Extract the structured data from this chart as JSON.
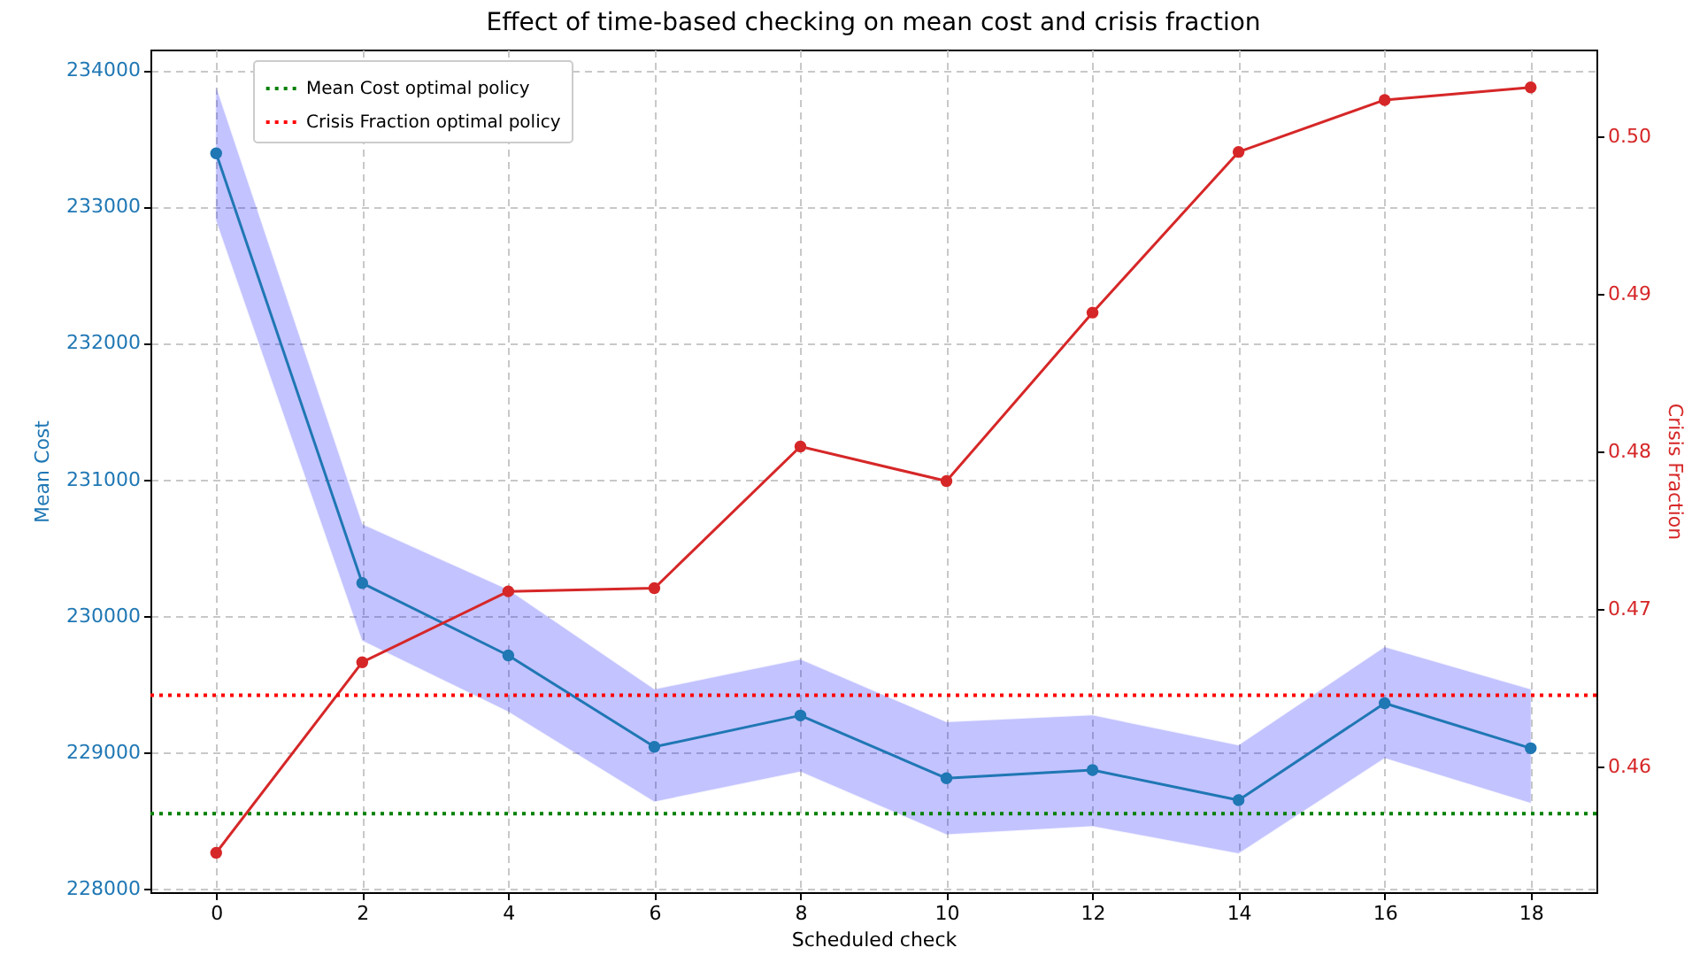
{
  "chart_data": {
    "type": "line",
    "title": "Effect of time-based checking on mean cost and crisis fraction",
    "xlabel": "Scheduled check",
    "ylabel": "Mean Cost",
    "y2label": "Crisis Fraction",
    "x": [
      0,
      2,
      4,
      6,
      8,
      10,
      12,
      14,
      16,
      18
    ],
    "series": [
      {
        "color": "#1f77b4",
        "values": [
          233390,
          230240,
          229710,
          229040,
          229270,
          228810,
          228870,
          228650,
          229360,
          229030
        ],
        "lower": [
          232900,
          229820,
          229300,
          228640,
          228860,
          228400,
          228460,
          228260,
          228960,
          228630
        ],
        "upper": [
          233870,
          230670,
          230190,
          229460,
          229680,
          229220,
          229270,
          229050,
          229770,
          229460
        ]
      },
      {
        "color": "#d62728",
        "axis": "y2",
        "values": [
          0.4545,
          0.4666,
          0.4711,
          0.4713,
          0.4803,
          0.4781,
          0.4888,
          0.499,
          0.5023,
          0.5031
        ]
      }
    ],
    "xlim": [
      -0.9,
      18.9
    ],
    "xticks": [
      0,
      2,
      4,
      6,
      8,
      10,
      12,
      14,
      16,
      18
    ],
    "ylim": [
      227975,
      234150
    ],
    "yticks": [
      228000,
      229000,
      230000,
      231000,
      232000,
      233000,
      234000
    ],
    "y2lim": [
      0.452,
      0.5055
    ],
    "y2ticks": [
      0.46,
      0.47,
      0.48,
      0.49,
      {
        "value": 0.5,
        "label": "0.50"
      }
    ],
    "ref_lines": [
      {
        "axis": "y",
        "value": 228550,
        "label": "Mean Cost optimal policy",
        "color": "#008000",
        "line_style": "dotted"
      },
      {
        "axis": "y2",
        "value": 0.4645,
        "label": "Crisis Fraction optimal policy",
        "color": "#ff0000",
        "line_style": "dotted"
      }
    ],
    "grid": true,
    "legend": "top left",
    "marker": "circle",
    "line_style": "solid"
  }
}
